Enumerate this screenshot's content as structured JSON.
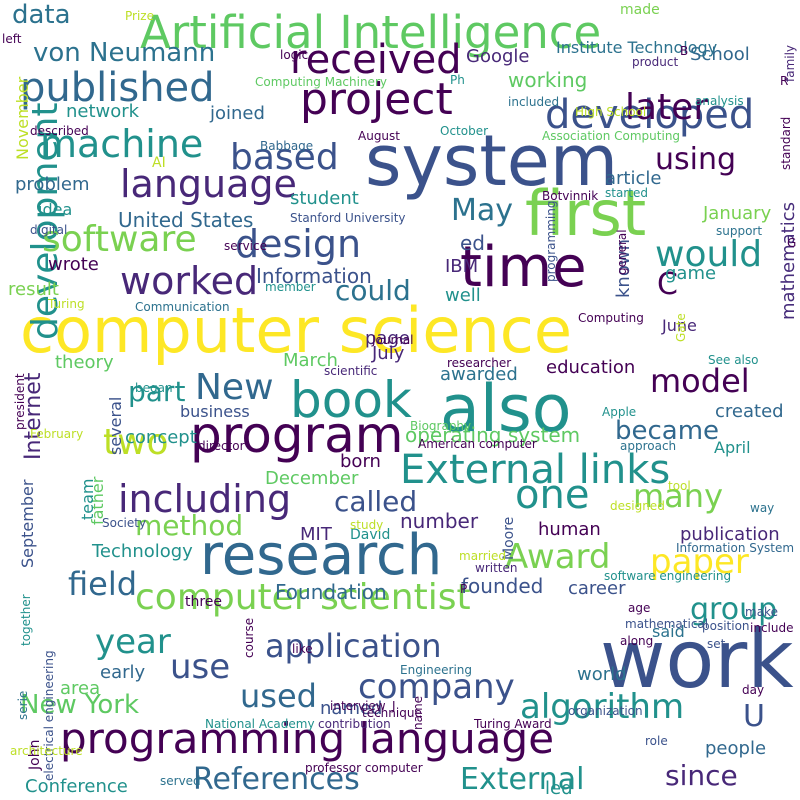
{
  "words": [
    {
      "text": "computer science",
      "color": "#fde725"
    },
    {
      "text": "work",
      "color": "#3b528b"
    },
    {
      "text": "system",
      "color": "#3b528b"
    },
    {
      "text": "also",
      "color": "#21918c"
    },
    {
      "text": "first",
      "color": "#7ad151"
    },
    {
      "text": "time",
      "color": "#440154"
    },
    {
      "text": "research",
      "color": "#31688e"
    },
    {
      "text": "program",
      "color": "#440154"
    },
    {
      "text": "book",
      "color": "#21918c"
    },
    {
      "text": "project",
      "color": "#440154"
    },
    {
      "text": "development",
      "color": "#21918c"
    },
    {
      "text": "programming language",
      "color": "#440154"
    },
    {
      "text": "Artificial Intelligence",
      "color": "#5ec962"
    },
    {
      "text": "External links",
      "color": "#21918c"
    },
    {
      "text": "one",
      "color": "#21918c"
    },
    {
      "text": "including",
      "color": "#482878"
    },
    {
      "text": "computer scientist",
      "color": "#7ad151"
    },
    {
      "text": "paper",
      "color": "#fde725"
    },
    {
      "text": "Award",
      "color": "#7ad151"
    },
    {
      "text": "developed",
      "color": "#3b528b"
    },
    {
      "text": "language",
      "color": "#482878"
    },
    {
      "text": "machine",
      "color": "#21918c"
    },
    {
      "text": "published",
      "color": "#31688e"
    },
    {
      "text": "received",
      "color": "#440154"
    },
    {
      "text": "software",
      "color": "#7ad151"
    },
    {
      "text": "worked",
      "color": "#482878"
    },
    {
      "text": "design",
      "color": "#3b528b"
    },
    {
      "text": "would",
      "color": "#21918c"
    },
    {
      "text": "company",
      "color": "#3b528b"
    },
    {
      "text": "application",
      "color": "#3b528b"
    },
    {
      "text": "algorithm",
      "color": "#21918c"
    },
    {
      "text": "model",
      "color": "#440154"
    },
    {
      "text": "year",
      "color": "#21918c"
    },
    {
      "text": "used",
      "color": "#31688e"
    },
    {
      "text": "use",
      "color": "#3b528b"
    },
    {
      "text": "later",
      "color": "#440154"
    },
    {
      "text": "based",
      "color": "#3b528b"
    },
    {
      "text": "two",
      "color": "#bddf26"
    },
    {
      "text": "New",
      "color": "#31688e"
    },
    {
      "text": "References",
      "color": "#31688e"
    },
    {
      "text": "External",
      "color": "#21918c"
    },
    {
      "text": "since",
      "color": "#482878"
    },
    {
      "text": "many",
      "color": "#7ad151"
    },
    {
      "text": "became",
      "color": "#31688e"
    },
    {
      "text": "field",
      "color": "#31688e"
    },
    {
      "text": "group",
      "color": "#21918c"
    },
    {
      "text": "New York",
      "color": "#5ec962"
    },
    {
      "text": "using",
      "color": "#440154"
    },
    {
      "text": "von Neumann",
      "color": "#2c728e"
    },
    {
      "text": "data",
      "color": "#2c728e"
    },
    {
      "text": "method",
      "color": "#7ad151"
    },
    {
      "text": "could",
      "color": "#2c728e"
    },
    {
      "text": "called",
      "color": "#3b528b"
    },
    {
      "text": "part",
      "color": "#21918c"
    },
    {
      "text": "operating system",
      "color": "#5ec962"
    },
    {
      "text": "May",
      "color": "#2c728e"
    },
    {
      "text": "U",
      "color": "#3b528b"
    },
    {
      "text": "C",
      "color": "#440154"
    },
    {
      "text": "Internet",
      "color": "#482878"
    },
    {
      "text": "United States",
      "color": "#31688e"
    },
    {
      "text": "Information",
      "color": "#3b528b"
    },
    {
      "text": "Foundation",
      "color": "#31688e"
    },
    {
      "text": "mathematics",
      "color": "#472d7b"
    },
    {
      "text": "Technology",
      "color": "#21918c"
    },
    {
      "text": "publication",
      "color": "#482878"
    },
    {
      "text": "education",
      "color": "#440154"
    },
    {
      "text": "people",
      "color": "#31688e"
    },
    {
      "text": "founded",
      "color": "#3b528b"
    },
    {
      "text": "created",
      "color": "#31688e"
    },
    {
      "text": "network",
      "color": "#21918c"
    },
    {
      "text": "School",
      "color": "#31688e"
    },
    {
      "text": "Google",
      "color": "#482878"
    },
    {
      "text": "working",
      "color": "#5ec962"
    },
    {
      "text": "joined",
      "color": "#31688e"
    },
    {
      "text": "article",
      "color": "#31688e"
    },
    {
      "text": "January",
      "color": "#7ad151"
    },
    {
      "text": "game",
      "color": "#21918c"
    },
    {
      "text": "known",
      "color": "#3b528b"
    },
    {
      "text": "student",
      "color": "#21918c"
    },
    {
      "text": "problem",
      "color": "#31688e"
    },
    {
      "text": "wrote",
      "color": "#440154"
    },
    {
      "text": "result",
      "color": "#7ad151"
    },
    {
      "text": "theory",
      "color": "#5ec962"
    },
    {
      "text": "March",
      "color": "#5ec962"
    },
    {
      "text": "July",
      "color": "#482878"
    },
    {
      "text": "awarded",
      "color": "#2c728e"
    },
    {
      "text": "business",
      "color": "#3b528b"
    },
    {
      "text": "concept",
      "color": "#21918c"
    },
    {
      "text": "born",
      "color": "#440154"
    },
    {
      "text": "December",
      "color": "#5ec962"
    },
    {
      "text": "number",
      "color": "#482878"
    },
    {
      "text": "human",
      "color": "#440154"
    },
    {
      "text": "career",
      "color": "#3b528b"
    },
    {
      "text": "world",
      "color": "#2c728e"
    },
    {
      "text": "early",
      "color": "#31688e"
    },
    {
      "text": "area",
      "color": "#5ec962"
    },
    {
      "text": "named",
      "color": "#3b528b"
    },
    {
      "text": "Conference",
      "color": "#21918c"
    },
    {
      "text": "led",
      "color": "#21918c"
    },
    {
      "text": "said",
      "color": "#2c728e"
    },
    {
      "text": "September",
      "color": "#3b528b"
    },
    {
      "text": "November",
      "color": "#bddf26"
    },
    {
      "text": "father",
      "color": "#5ec962"
    },
    {
      "text": "team",
      "color": "#21918c"
    },
    {
      "text": "several",
      "color": "#3b528b"
    },
    {
      "text": "ed",
      "color": "#3b528b"
    },
    {
      "text": "IBM",
      "color": "#482878"
    },
    {
      "text": "well",
      "color": "#21918c"
    },
    {
      "text": "page",
      "color": "#482878"
    },
    {
      "text": "June",
      "color": "#482878"
    },
    {
      "text": "April",
      "color": "#21918c"
    },
    {
      "text": "idea",
      "color": "#21918c"
    },
    {
      "text": "MIT",
      "color": "#482878"
    },
    {
      "text": "David",
      "color": "#21918c"
    },
    {
      "text": "Moore",
      "color": "#3b528b"
    },
    {
      "text": "made",
      "color": "#7ad151"
    },
    {
      "text": "Institute Technology",
      "color": "#2c728e"
    },
    {
      "text": "AI",
      "color": "#bddf26"
    },
    {
      "text": "three",
      "color": "#440154"
    },
    {
      "text": "John",
      "color": "#440154"
    },
    {
      "text": "serie",
      "color": "#2c728e"
    },
    {
      "text": "National Academy",
      "color": "#21918c"
    },
    {
      "text": "Turing Award",
      "color": "#440154"
    },
    {
      "text": "Engineering",
      "color": "#2c728e"
    },
    {
      "text": "Stanford University",
      "color": "#3b528b"
    },
    {
      "text": "Computing Machinery",
      "color": "#5ec962"
    },
    {
      "text": "Association Computing",
      "color": "#5ec962"
    },
    {
      "text": "Information System",
      "color": "#31688e"
    },
    {
      "text": "American computer",
      "color": "#440154"
    },
    {
      "text": "professor computer",
      "color": "#440154"
    },
    {
      "text": "electrical engineering",
      "color": "#3b528b"
    },
    {
      "text": "software engineering",
      "color": "#21918c"
    },
    {
      "text": "Biography",
      "color": "#5ec962"
    },
    {
      "text": "Botvinnik",
      "color": "#440154"
    },
    {
      "text": "Babbage",
      "color": "#31688e"
    },
    {
      "text": "October",
      "color": "#21918c"
    },
    {
      "text": "February",
      "color": "#bddf26"
    },
    {
      "text": "August",
      "color": "#440154"
    },
    {
      "text": "included",
      "color": "#2c728e"
    },
    {
      "text": "High School",
      "color": "#bddf26"
    },
    {
      "text": "president",
      "color": "#440154"
    },
    {
      "text": "digital",
      "color": "#3b528b"
    },
    {
      "text": "service",
      "color": "#440154"
    },
    {
      "text": "started",
      "color": "#21918c"
    },
    {
      "text": "support",
      "color": "#2c728e"
    },
    {
      "text": "general",
      "color": "#440154"
    },
    {
      "text": "standard",
      "color": "#440154"
    },
    {
      "text": "analysis",
      "color": "#21918c"
    },
    {
      "text": "family",
      "color": "#482878"
    },
    {
      "text": "product",
      "color": "#482878"
    },
    {
      "text": "logic",
      "color": "#440154"
    },
    {
      "text": "Prize",
      "color": "#bddf26"
    },
    {
      "text": "left",
      "color": "#440154"
    },
    {
      "text": "described",
      "color": "#440154"
    },
    {
      "text": "Turing",
      "color": "#bddf26"
    },
    {
      "text": "Communication",
      "color": "#2c728e"
    },
    {
      "text": "member",
      "color": "#21918c"
    },
    {
      "text": "Journal",
      "color": "#440154"
    },
    {
      "text": "researcher",
      "color": "#440154"
    },
    {
      "text": "scientific",
      "color": "#482878"
    },
    {
      "text": "began",
      "color": "#21918c"
    },
    {
      "text": "Apple",
      "color": "#21918c"
    },
    {
      "text": "director",
      "color": "#440154"
    },
    {
      "text": "approach",
      "color": "#2c728e"
    },
    {
      "text": "tool",
      "color": "#bddf26"
    },
    {
      "text": "designed",
      "color": "#bddf26"
    },
    {
      "text": "way",
      "color": "#2c728e"
    },
    {
      "text": "Society",
      "color": "#3b528b"
    },
    {
      "text": "study",
      "color": "#bddf26"
    },
    {
      "text": "married",
      "color": "#bddf26"
    },
    {
      "text": "written",
      "color": "#482878"
    },
    {
      "text": "age",
      "color": "#440154"
    },
    {
      "text": "position",
      "color": "#3b528b"
    },
    {
      "text": "mathematical",
      "color": "#3b528b"
    },
    {
      "text": "make",
      "color": "#3b528b"
    },
    {
      "text": "along",
      "color": "#440154"
    },
    {
      "text": "set",
      "color": "#3b528b"
    },
    {
      "text": "include",
      "color": "#440154"
    },
    {
      "text": "day",
      "color": "#440154"
    },
    {
      "text": "role",
      "color": "#3b528b"
    },
    {
      "text": "served",
      "color": "#2c728e"
    },
    {
      "text": "interview",
      "color": "#440154"
    },
    {
      "text": "contribution",
      "color": "#482878"
    },
    {
      "text": "organization",
      "color": "#3b528b"
    },
    {
      "text": "technique",
      "color": "#440154"
    },
    {
      "text": "course",
      "color": "#440154"
    },
    {
      "text": "like",
      "color": "#440154"
    },
    {
      "text": "together",
      "color": "#21918c"
    },
    {
      "text": "architecture",
      "color": "#bddf26"
    },
    {
      "text": "name",
      "color": "#440154"
    },
    {
      "text": "programming",
      "color": "#3b528b"
    },
    {
      "text": "Gate",
      "color": "#bddf26"
    },
    {
      "text": "See also",
      "color": "#21918c"
    },
    {
      "text": "Computing",
      "color": "#440154"
    },
    {
      "text": "Ph",
      "color": "#21918c"
    },
    {
      "text": "B",
      "color": "#440154"
    },
    {
      "text": "R",
      "color": "#440154"
    },
    {
      "text": "G",
      "color": "#440154"
    },
    {
      "text": "J",
      "color": "#440154"
    },
    {
      "text": "P",
      "color": "#440154"
    },
    {
      "text": "E",
      "color": "#440154"
    }
  ]
}
